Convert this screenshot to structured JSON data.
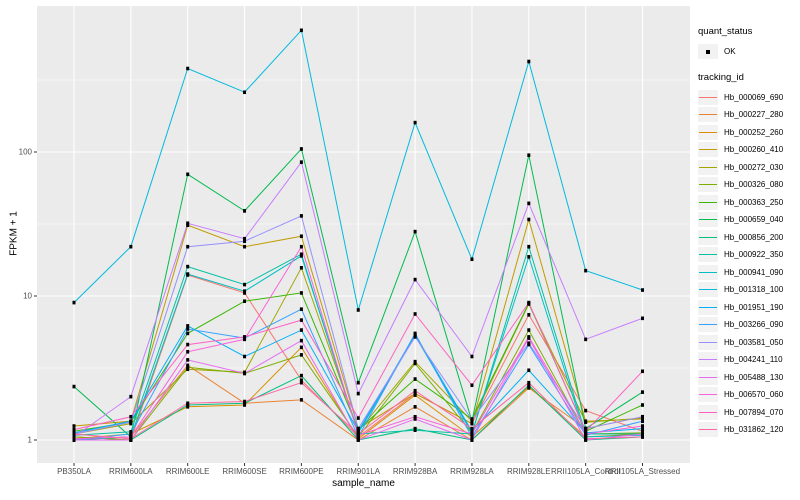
{
  "figure": {
    "panel_bg": "#EBEBEB",
    "grid_color": "#FFFFFF",
    "axis_text_color": "#4D4D4D",
    "tick_color": "#333333",
    "point_color": "#000000",
    "legend_key_bg": "#F2F2F2"
  },
  "axes": {
    "x_label": "sample_name",
    "y_label": "FPKM + 1",
    "y_tick_labels": [
      "1",
      "10",
      "100"
    ],
    "y_tick_values": [
      1,
      10,
      100
    ],
    "y_minor_values": [
      3.1623,
      31.623,
      316.23
    ]
  },
  "legend": {
    "quant_title": "quant_status",
    "quant_items": [
      {
        "label": "OK",
        "symbol": "point-marker"
      }
    ],
    "tracking_title": "tracking_id"
  },
  "chart_data": {
    "type": "line",
    "y_scale": "log10",
    "title": "",
    "xlabel": "sample_name",
    "ylabel": "FPKM + 1",
    "ylim": [
      1,
      1000
    ],
    "grid": true,
    "legend_position": "right",
    "point_marker": "small black square on every data point",
    "categories": [
      "PB350LA",
      "RRIM600LA",
      "RRIM600LE",
      "RRIM600SE",
      "RRIM600PE",
      "RRIM901LA",
      "RRIM928BA",
      "RRIM928LA",
      "RRIM928LE",
      "RRII105LA_Control",
      "RRII105LA_Stressed"
    ],
    "series": [
      {
        "name": "Hb_000069_690",
        "color": "#F8766D",
        "values": [
          1.05,
          1.0,
          14,
          10.5,
          2.6,
          1.05,
          2.1,
          1.3,
          7.4,
          1.6,
          1.15
        ]
      },
      {
        "name": "Hb_000227_280",
        "color": "#EA8331",
        "values": [
          1.0,
          1.05,
          3.3,
          1.8,
          1.9,
          1.0,
          1.7,
          1.0,
          2.3,
          1.2,
          1.45
        ]
      },
      {
        "name": "Hb_000252_260",
        "color": "#D89000",
        "values": [
          1.02,
          1.1,
          1.7,
          1.75,
          4.4,
          1.02,
          2.05,
          1.05,
          2.35,
          1.05,
          1.1
        ]
      },
      {
        "name": "Hb_000260_410",
        "color": "#C09B00",
        "values": [
          1.25,
          1.35,
          31,
          22,
          26,
          1.2,
          2.1,
          1.3,
          34,
          1.35,
          1.4
        ]
      },
      {
        "name": "Hb_000272_030",
        "color": "#A3A500",
        "values": [
          1.1,
          1.3,
          3.1,
          2.95,
          15.7,
          1.15,
          3.5,
          1.35,
          8.8,
          1.33,
          1.42
        ]
      },
      {
        "name": "Hb_000326_080",
        "color": "#7CAE00",
        "values": [
          1.05,
          1.0,
          3.2,
          2.9,
          3.9,
          1.05,
          3.4,
          1.12,
          5.8,
          1.1,
          1.12
        ]
      },
      {
        "name": "Hb_000363_250",
        "color": "#39B600",
        "values": [
          1.15,
          1.33,
          5.5,
          9.2,
          10.5,
          1.18,
          2.65,
          1.4,
          8.9,
          1.15,
          1.75
        ]
      },
      {
        "name": "Hb_000659_040",
        "color": "#00BB4E",
        "values": [
          2.35,
          1.05,
          70,
          39,
          105,
          2.5,
          28,
          1.35,
          95,
          1.2,
          2.15
        ]
      },
      {
        "name": "Hb_000856_200",
        "color": "#00BF7D",
        "values": [
          1.0,
          1.0,
          1.75,
          1.8,
          2.8,
          1.0,
          1.2,
          1.0,
          2.4,
          1.0,
          1.05
        ]
      },
      {
        "name": "Hb_000922_350",
        "color": "#00C1A3",
        "values": [
          1.08,
          1.14,
          16,
          12,
          19.5,
          1.1,
          1.17,
          1.1,
          22,
          1.1,
          1.1
        ]
      },
      {
        "name": "Hb_000941_090",
        "color": "#00BFC4",
        "values": [
          1.0,
          1.05,
          14.2,
          10.8,
          19,
          1.12,
          5.3,
          1.12,
          18.7,
          1.05,
          1.08
        ]
      },
      {
        "name": "Hb_001318_100",
        "color": "#00BADE",
        "values": [
          9,
          22,
          380,
          260,
          700,
          8,
          160,
          18,
          425,
          15,
          11
        ]
      },
      {
        "name": "Hb_001951_190",
        "color": "#00B0F6",
        "values": [
          1.12,
          1.35,
          6.2,
          3.8,
          5.8,
          1.15,
          5.4,
          1.15,
          3.05,
          1.12,
          1.2
        ]
      },
      {
        "name": "Hb_003266_090",
        "color": "#35A2FF",
        "values": [
          1.0,
          1.1,
          5.9,
          5.1,
          8.1,
          1.05,
          5.5,
          1.05,
          4.6,
          1.08,
          1.35
        ]
      },
      {
        "name": "Hb_003581_050",
        "color": "#9590FF",
        "values": [
          1.1,
          1.33,
          22,
          24,
          36,
          1.2,
          5.2,
          1.38,
          4.7,
          1.2,
          1.45
        ]
      },
      {
        "name": "Hb_004241_110",
        "color": "#C77CFF",
        "values": [
          1.05,
          2.0,
          32,
          25,
          85,
          2.1,
          13,
          3.8,
          44,
          5.0,
          7.0
        ]
      },
      {
        "name": "Hb_005488_130",
        "color": "#E76BF3",
        "values": [
          1.0,
          1.0,
          3.6,
          2.9,
          4.9,
          1.0,
          1.4,
          1.0,
          5.1,
          1.0,
          1.1
        ]
      },
      {
        "name": "Hb_006570_060",
        "color": "#FA62DB",
        "values": [
          1.02,
          1.05,
          4.1,
          5.0,
          22,
          1.08,
          1.45,
          1.1,
          5.2,
          1.1,
          1.25
        ]
      },
      {
        "name": "Hb_007894_070",
        "color": "#FF61C3",
        "values": [
          1.18,
          1.45,
          4.6,
          5.2,
          6.8,
          1.42,
          7.5,
          2.4,
          9.0,
          1.15,
          3.0
        ]
      },
      {
        "name": "Hb_031862_120",
        "color": "#FF67A4",
        "values": [
          1.1,
          1.02,
          1.8,
          1.85,
          2.5,
          1.1,
          2.2,
          1.2,
          2.5,
          1.02,
          1.05
        ]
      }
    ]
  }
}
